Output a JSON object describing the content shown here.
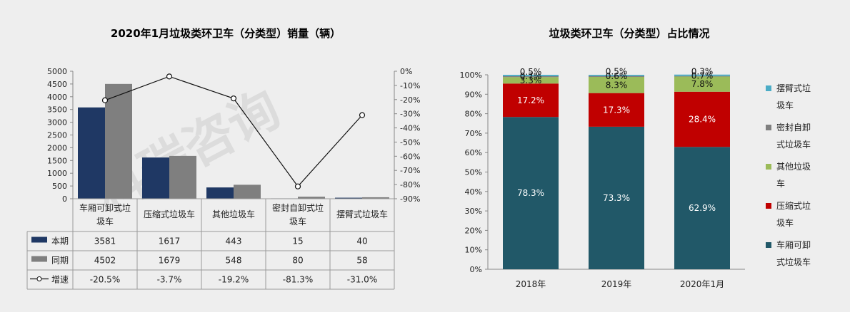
{
  "left_chart": {
    "title": "2020年1月垃圾类环卫车（分类型）销量（辆）",
    "left_ticks": [
      "5000",
      "4500",
      "4000",
      "3500",
      "3000",
      "2500",
      "2000",
      "1500",
      "1000",
      "500",
      "0"
    ],
    "right_ticks": [
      "0%",
      "-10%",
      "-20%",
      "-30%",
      "-40%",
      "-50%",
      "-60%",
      "-70%",
      "-80%",
      "-90%"
    ],
    "categories": [
      [
        "车厢可卸式垃",
        "圾车"
      ],
      [
        "压缩式垃圾车"
      ],
      [
        "其他垃圾车"
      ],
      [
        "密封自卸式垃",
        "圾车"
      ],
      [
        "摆臂式垃圾车"
      ]
    ],
    "rows": [
      {
        "label": "本期",
        "values": [
          "3581",
          "1617",
          "443",
          "15",
          "40"
        ]
      },
      {
        "label": "同期",
        "values": [
          "4502",
          "1679",
          "548",
          "80",
          "58"
        ]
      },
      {
        "label": "增速",
        "values": [
          "-20.5%",
          "-3.7%",
          "-19.2%",
          "-81.3%",
          "-31.0%"
        ]
      }
    ]
  },
  "chart_data": [
    {
      "type": "bar",
      "title": "2020年1月垃圾类环卫车（分类型）销量（辆）",
      "categories": [
        "车厢可卸式垃圾车",
        "压缩式垃圾车",
        "其他垃圾车",
        "密封自卸式垃圾车",
        "摆臂式垃圾车"
      ],
      "series": [
        {
          "name": "本期",
          "type": "bar",
          "axis": "left",
          "color": "#1f3864",
          "values": [
            3581,
            1617,
            443,
            15,
            40
          ]
        },
        {
          "name": "同期",
          "type": "bar",
          "axis": "left",
          "color": "#7f7f7f",
          "values": [
            4502,
            1679,
            548,
            80,
            58
          ]
        },
        {
          "name": "增速",
          "type": "line",
          "axis": "right",
          "color": "#111111",
          "values": [
            -20.5,
            -3.7,
            -19.2,
            -81.3,
            -31.0
          ]
        }
      ],
      "ylim_left": [
        0,
        5000
      ],
      "ylim_right": [
        -90,
        0
      ],
      "grid": false,
      "legend": "data-table"
    },
    {
      "type": "bar",
      "stacked": true,
      "title": "垃圾类环卫车（分类型）占比情况",
      "categories": [
        "2018年",
        "2019年",
        "2020年1月"
      ],
      "series": [
        {
          "name": "车厢可卸式垃圾车",
          "color": "#215868",
          "values": [
            78.3,
            73.3,
            62.9
          ]
        },
        {
          "name": "压缩式垃圾车",
          "color": "#c00000",
          "values": [
            17.2,
            17.3,
            28.4
          ]
        },
        {
          "name": "其他垃圾车",
          "color": "#9bbb59",
          "values": [
            3.3,
            8.3,
            7.8
          ]
        },
        {
          "name": "密封自卸式垃圾车",
          "color": "#7f7f7f",
          "values": [
            0.5,
            0.5,
            0.3
          ]
        },
        {
          "name": "摆臂式垃圾车",
          "color": "#4bacc6",
          "values": [
            0.7,
            0.6,
            0.7
          ]
        }
      ],
      "data_labels": [
        [
          "78.3%",
          "17.2%",
          "3.3%",
          "0.5%",
          "0.7%"
        ],
        [
          "73.3%",
          "17.3%",
          "8.3%",
          "0.5%",
          "0.6%"
        ],
        [
          "62.9%",
          "28.4%",
          "7.8%",
          "0.3%",
          "0.7%"
        ]
      ],
      "ylim": [
        0,
        100
      ],
      "legend": "right"
    }
  ],
  "right_chart": {
    "title": "垃圾类环卫车（分类型）占比情况",
    "yticks": [
      "100%",
      "90%",
      "80%",
      "70%",
      "60%",
      "50%",
      "40%",
      "30%",
      "20%",
      "10%",
      "0%"
    ],
    "legend": [
      [
        "摆臂式垃",
        "圾车"
      ],
      [
        "密封自卸",
        "式垃圾车"
      ],
      [
        "其他垃圾",
        "车"
      ],
      [
        "压缩式垃",
        "圾车"
      ],
      [
        "车厢可卸",
        "式垃圾车"
      ]
    ]
  },
  "watermark": "科瑞咨询"
}
